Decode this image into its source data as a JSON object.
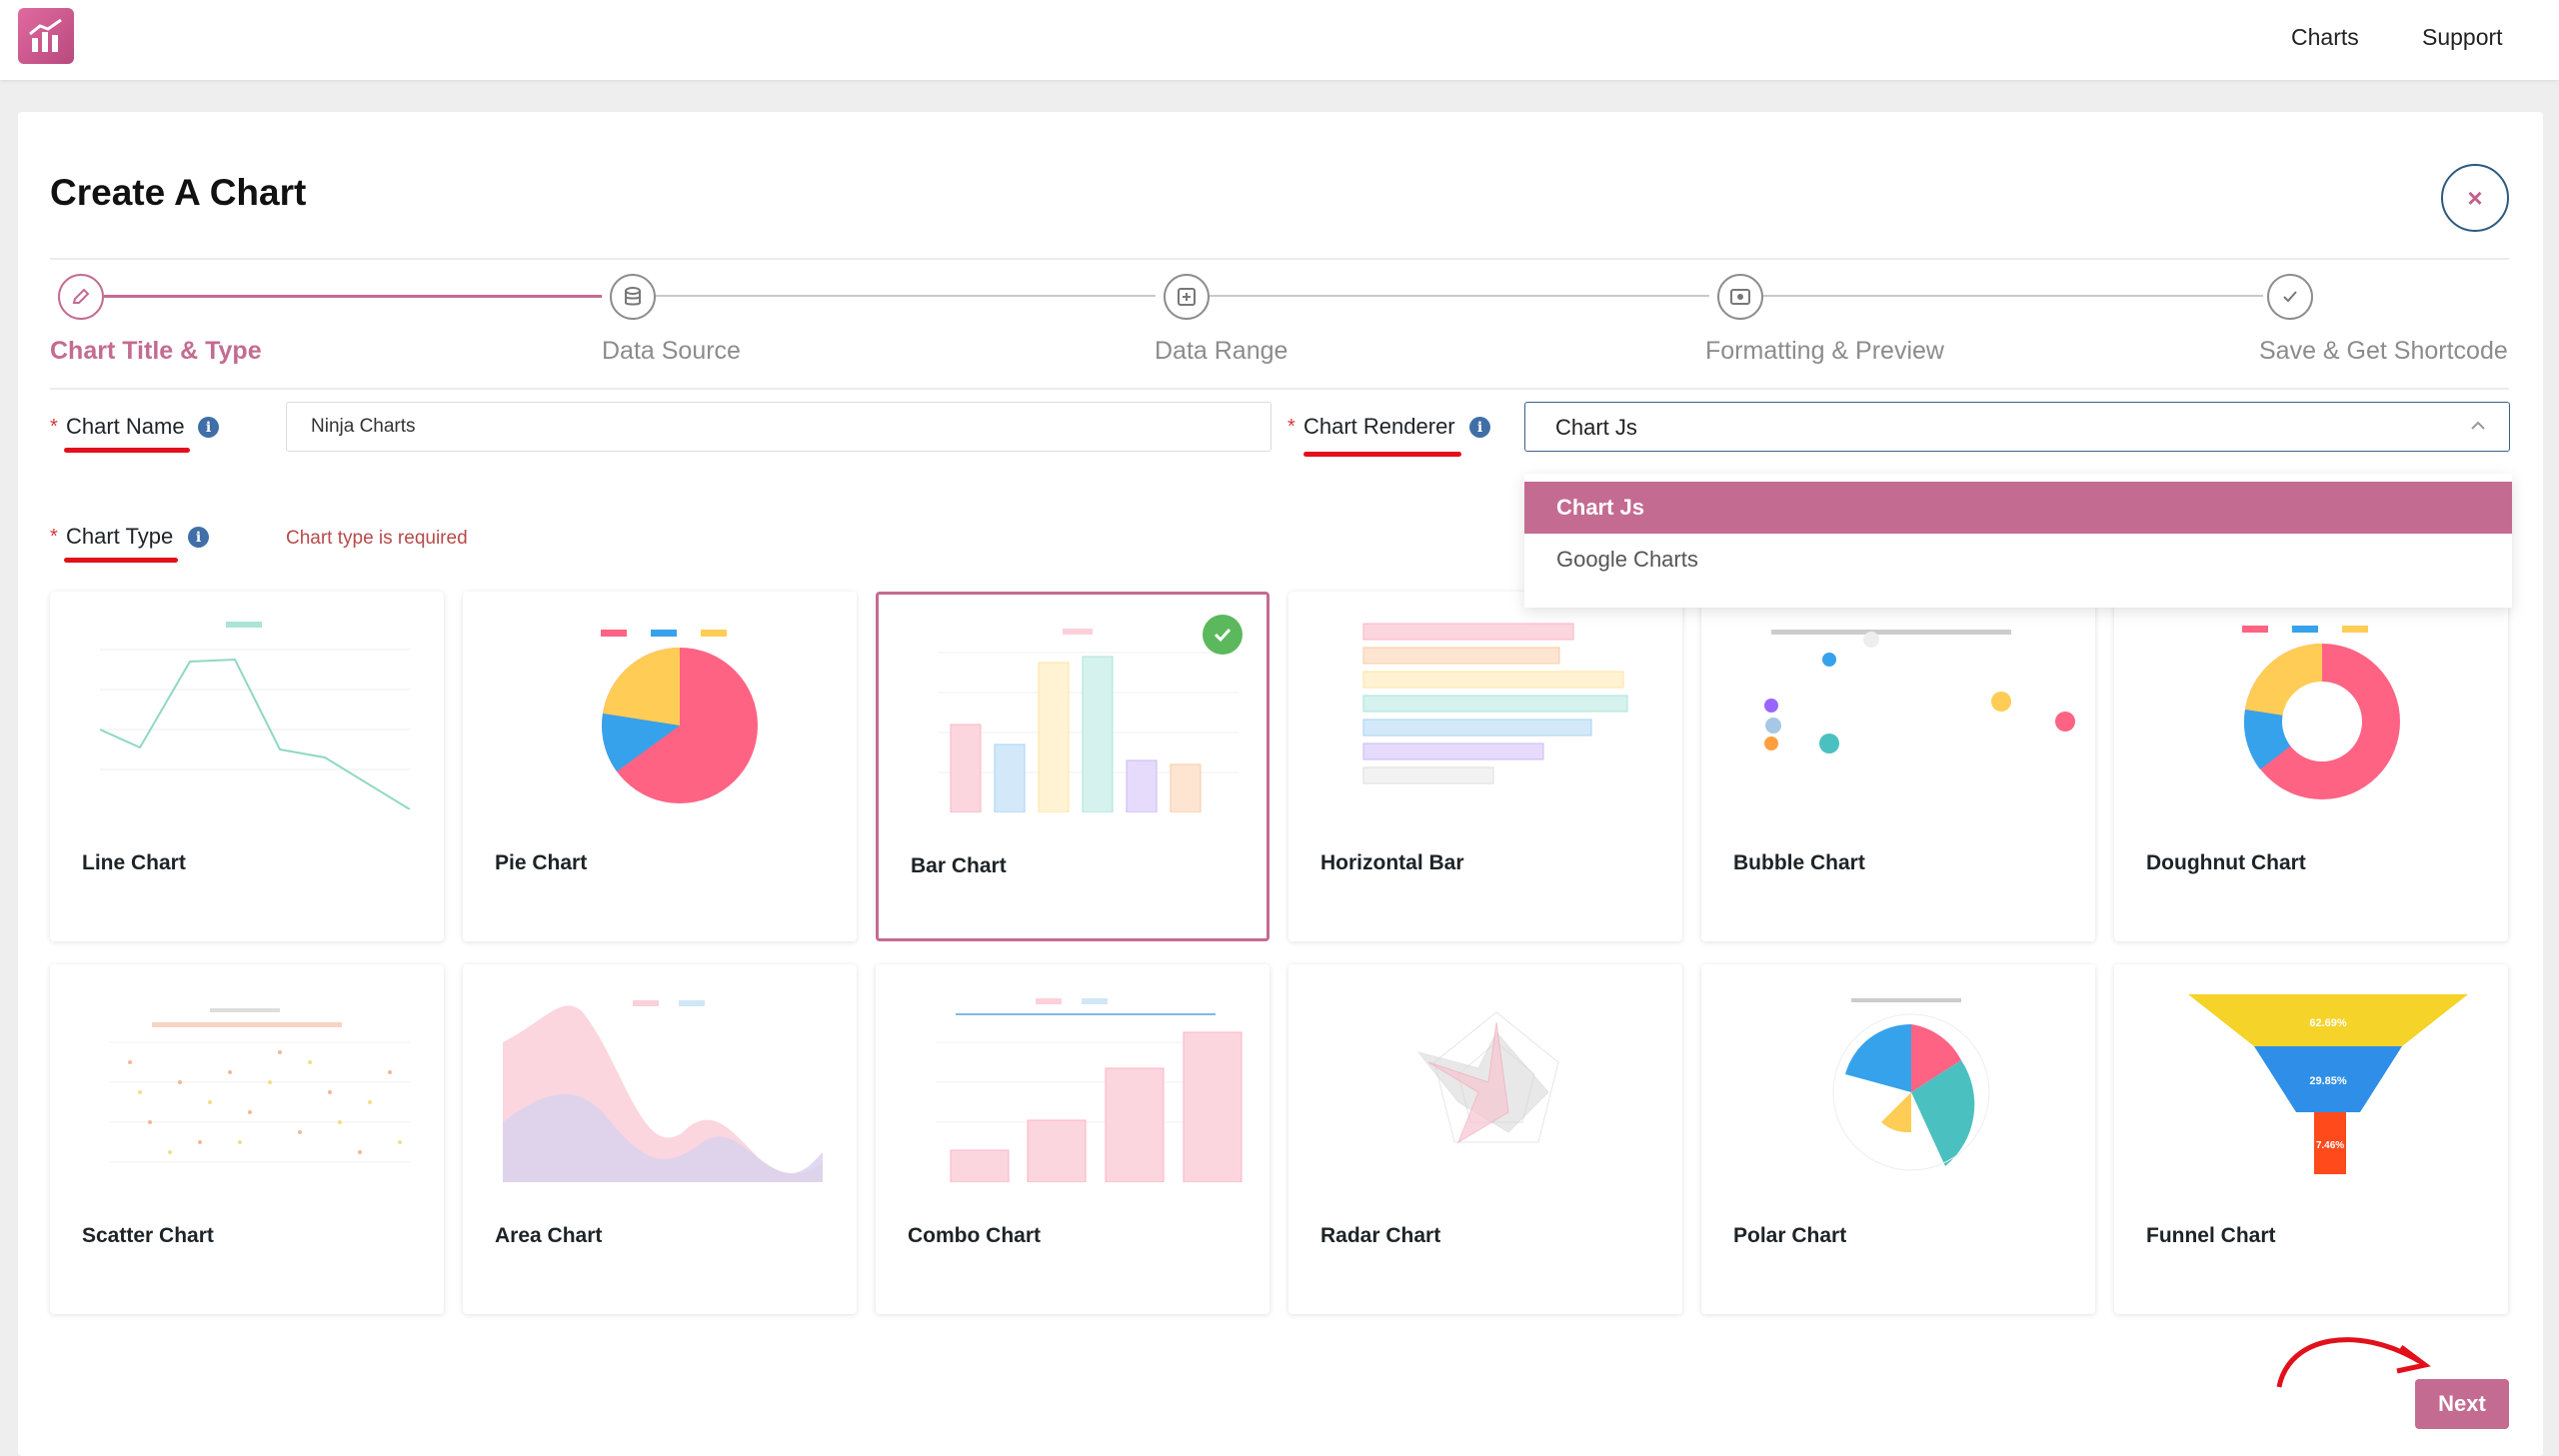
{
  "topbar": {
    "nav": [
      {
        "label": "Charts"
      },
      {
        "label": "Support"
      }
    ]
  },
  "page": {
    "title": "Create A Chart",
    "close_icon": "×"
  },
  "steps": [
    {
      "label": "Chart Title & Type",
      "icon": "pencil-icon",
      "active": true
    },
    {
      "label": "Data Source",
      "icon": "database-icon",
      "active": false
    },
    {
      "label": "Data Range",
      "icon": "range-icon",
      "active": false
    },
    {
      "label": "Formatting & Preview",
      "icon": "preview-icon",
      "active": false
    },
    {
      "label": "Save & Get Shortcode",
      "icon": "check-icon",
      "active": false
    }
  ],
  "form": {
    "required_mark": "*",
    "chart_name": {
      "label": "Chart Name",
      "value": "Ninja Charts"
    },
    "chart_renderer": {
      "label": "Chart Renderer",
      "value": "Chart Js",
      "options": [
        "Chart Js",
        "Google Charts"
      ]
    },
    "chart_type": {
      "label": "Chart Type",
      "error": "Chart type is required"
    }
  },
  "chart_types": [
    {
      "label": "Line Chart"
    },
    {
      "label": "Pie Chart"
    },
    {
      "label": "Bar Chart",
      "selected": true
    },
    {
      "label": "Horizontal Bar"
    },
    {
      "label": "Bubble Chart"
    },
    {
      "label": "Doughnut Chart"
    },
    {
      "label": "Scatter Chart"
    },
    {
      "label": "Area Chart"
    },
    {
      "label": "Combo Chart"
    },
    {
      "label": "Radar Chart"
    },
    {
      "label": "Polar Chart"
    },
    {
      "label": "Funnel Chart"
    }
  ],
  "funnel_labels": [
    "62.69%",
    "29.85%",
    "7.46%"
  ],
  "footer": {
    "next_label": "Next"
  },
  "colors": {
    "accent": "#c46b91",
    "required": "#d63638",
    "annotation": "#e2101a"
  }
}
